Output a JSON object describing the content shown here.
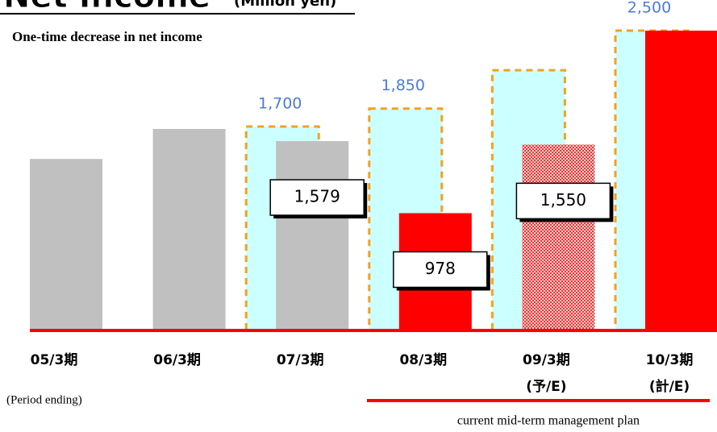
{
  "chart_data": {
    "type": "bar",
    "title": "Net Income",
    "unit_label": "(Million yen)",
    "subtitle": "One-time decrease in net income",
    "x_note": "(Period ending)",
    "bracket_label": "current mid-term management plan",
    "categories": [
      "05/3期",
      "06/3期",
      "07/3期",
      "08/3期",
      "09/3期",
      "10/3期"
    ],
    "category_notes": [
      null,
      null,
      null,
      null,
      "(予/E)",
      "(計/E)"
    ],
    "ylim": [
      0,
      2500
    ],
    "series": [
      {
        "color": "#ccffff",
        "border": "#f5a020",
        "label_color": "#4a7bd8",
        "label_box": false,
        "values": [
          null,
          null,
          1700,
          1850,
          2170,
          2500
        ],
        "value_labels": [
          null,
          null,
          "1,700",
          "1,850",
          null,
          "2,500"
        ]
      },
      {
        "colors": [
          "#c0c0c0",
          "#c0c0c0",
          "#c0c0c0",
          "#ff0000",
          "#ff9a9a",
          "#ff0000"
        ],
        "hatched": [
          false,
          false,
          false,
          false,
          true,
          false
        ],
        "label_color": "#000000",
        "label_box": true,
        "values": [
          1430,
          1680,
          1579,
          978,
          1550,
          2500
        ],
        "value_labels": [
          null,
          null,
          "1,579",
          "978",
          "1,550",
          null
        ]
      }
    ]
  }
}
